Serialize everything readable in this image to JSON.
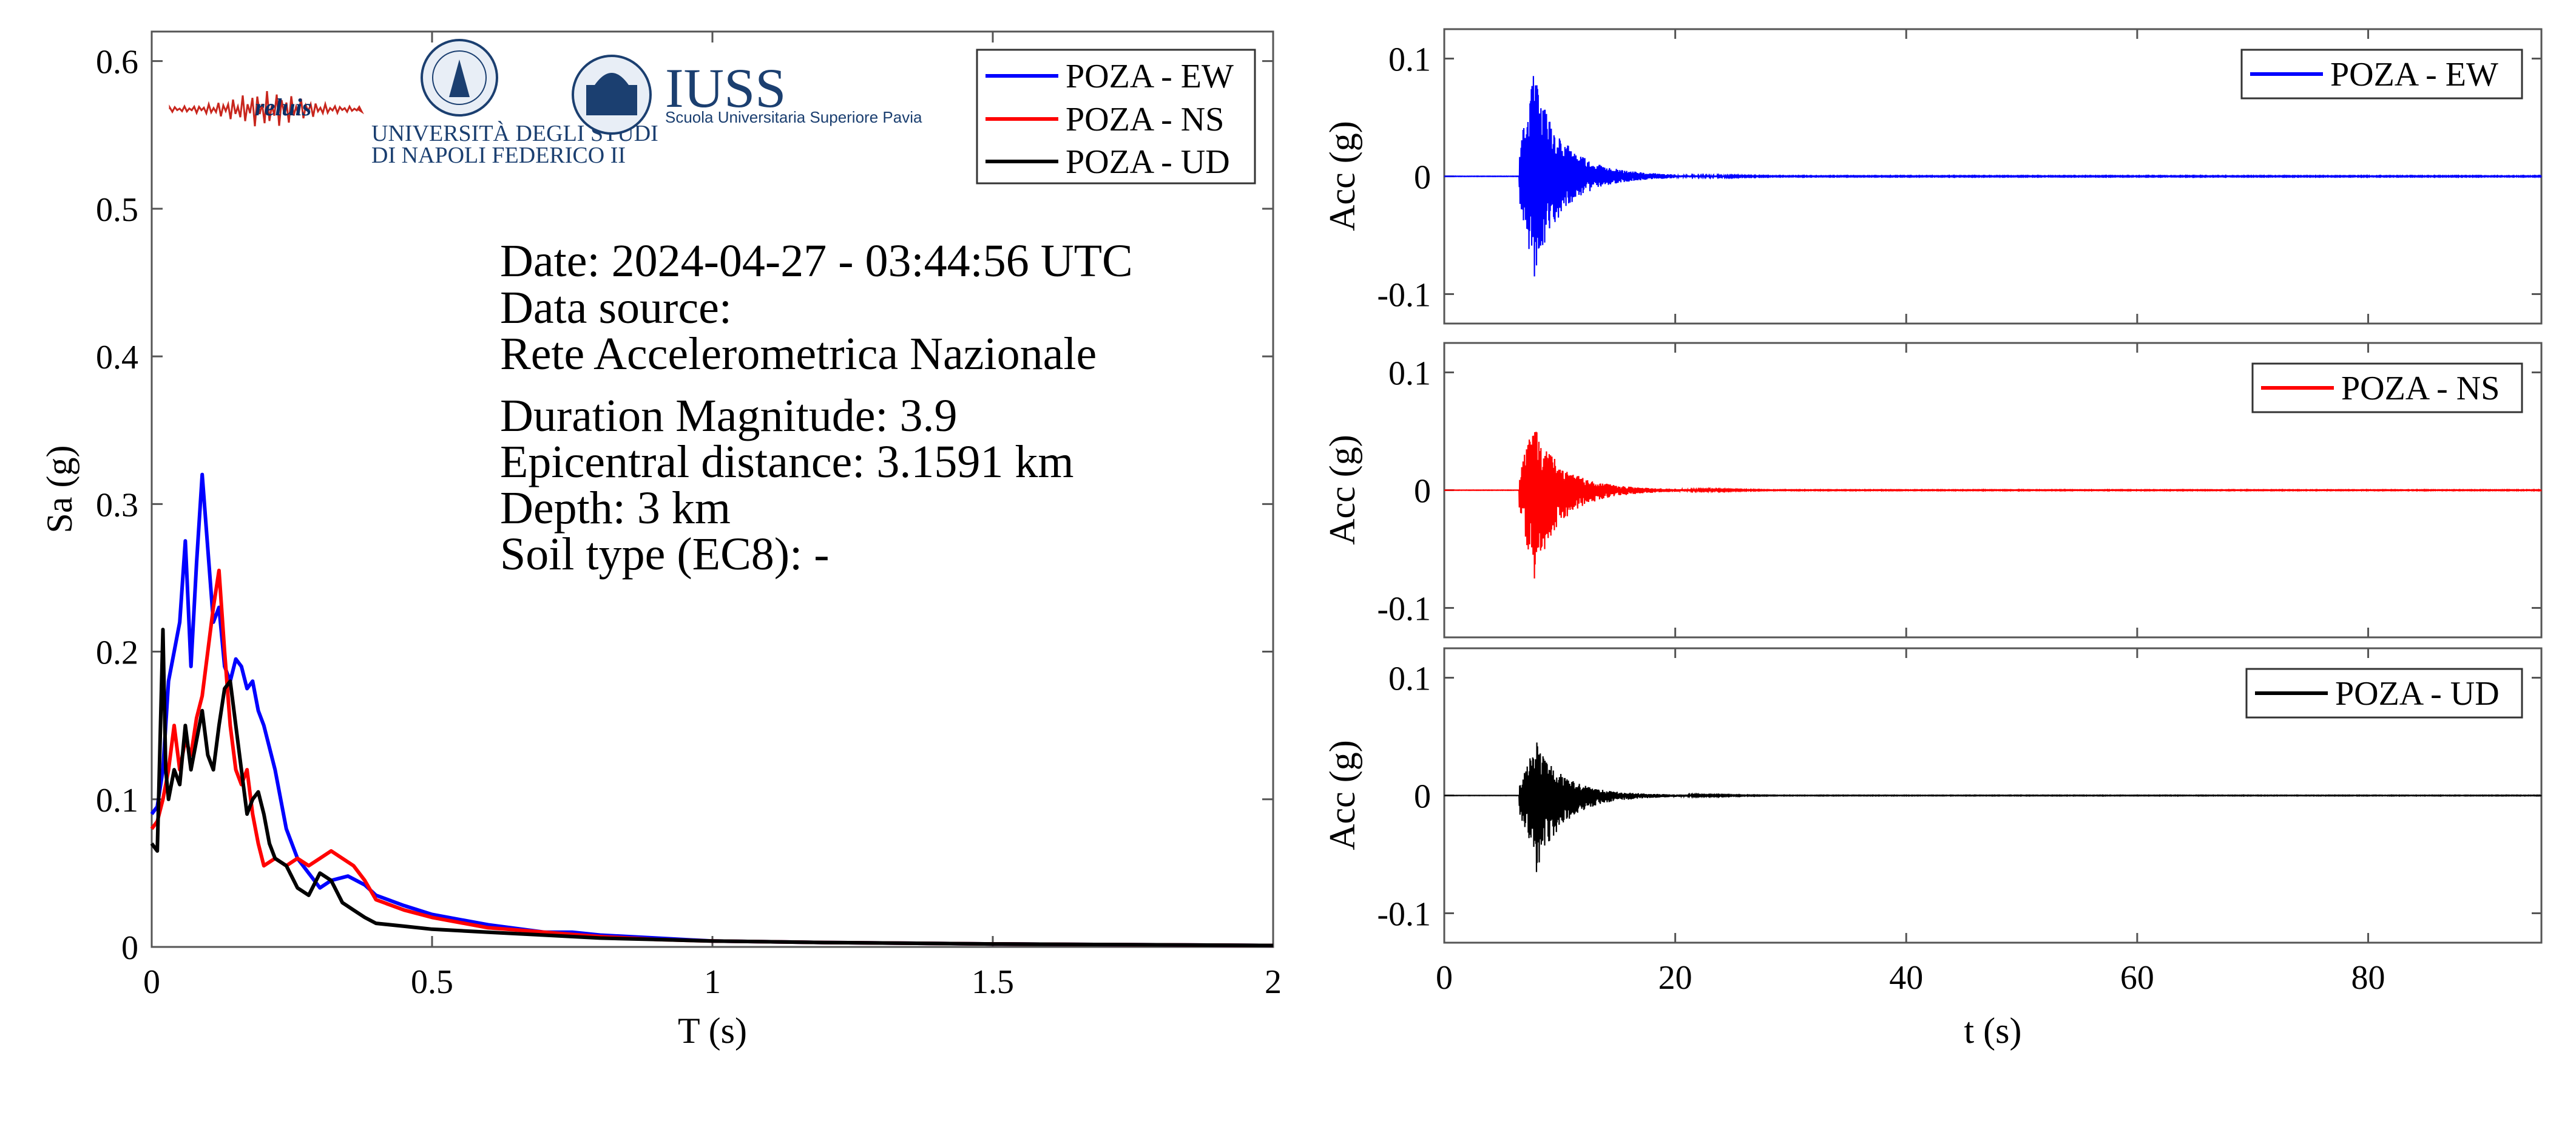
{
  "colors": {
    "ew": "#0000ff",
    "ns": "#ff0000",
    "ud": "#000000"
  },
  "logos": {
    "reluis": "reluis",
    "unina_line1": "UNIVERSITÀ DEGLI STUDI",
    "unina_line2": "DI NAPOLI FEDERICO II",
    "iuss": "IUSS",
    "iuss_sub": "Scuola Universitaria Superiore Pavia"
  },
  "info": {
    "date": "Date: 2024-04-27 - 03:44:56 UTC",
    "source_label": "Data source:",
    "source": "Rete Accelerometrica Nazionale",
    "magnitude": "Duration Magnitude: 3.9",
    "distance": "Epicentral distance: 3.1591 km",
    "depth": "Depth: 3 km",
    "soil": "Soil type (EC8): -"
  },
  "chart_data": [
    {
      "type": "line",
      "xlabel": "T (s)",
      "ylabel": "Sa (g)",
      "xlim": [
        0,
        2
      ],
      "ylim": [
        0,
        0.62
      ],
      "xticks": [
        0,
        0.5,
        1,
        1.5,
        2
      ],
      "xtick_labels": [
        "0",
        "0.5",
        "1",
        "1.5",
        "2"
      ],
      "yticks": [
        0,
        0.1,
        0.2,
        0.3,
        0.4,
        0.5,
        0.6
      ],
      "ytick_labels": [
        "0",
        "0.1",
        "0.2",
        "0.3",
        "0.4",
        "0.5",
        "0.6"
      ],
      "legend": "top-right",
      "series": [
        {
          "name": "POZA - EW",
          "color": "#0000ff",
          "x": [
            0,
            0.01,
            0.02,
            0.03,
            0.04,
            0.05,
            0.06,
            0.07,
            0.08,
            0.09,
            0.1,
            0.11,
            0.12,
            0.13,
            0.14,
            0.15,
            0.16,
            0.17,
            0.18,
            0.19,
            0.2,
            0.22,
            0.24,
            0.26,
            0.28,
            0.3,
            0.32,
            0.35,
            0.38,
            0.4,
            0.45,
            0.5,
            0.6,
            0.7,
            0.75,
            0.8,
            0.9,
            1.0,
            1.2,
            1.5,
            2.0
          ],
          "y": [
            0.09,
            0.095,
            0.12,
            0.18,
            0.2,
            0.22,
            0.275,
            0.19,
            0.26,
            0.32,
            0.27,
            0.22,
            0.23,
            0.19,
            0.18,
            0.195,
            0.19,
            0.175,
            0.18,
            0.16,
            0.15,
            0.12,
            0.08,
            0.06,
            0.05,
            0.04,
            0.045,
            0.048,
            0.042,
            0.035,
            0.028,
            0.022,
            0.015,
            0.01,
            0.01,
            0.008,
            0.006,
            0.004,
            0.003,
            0.002,
            0.001
          ]
        },
        {
          "name": "POZA - NS",
          "color": "#ff0000",
          "x": [
            0,
            0.01,
            0.02,
            0.03,
            0.04,
            0.05,
            0.06,
            0.07,
            0.08,
            0.09,
            0.1,
            0.11,
            0.12,
            0.13,
            0.14,
            0.15,
            0.16,
            0.17,
            0.18,
            0.19,
            0.2,
            0.22,
            0.24,
            0.26,
            0.28,
            0.3,
            0.32,
            0.34,
            0.36,
            0.38,
            0.4,
            0.45,
            0.5,
            0.6,
            0.7,
            0.8,
            0.9,
            1.0,
            1.2,
            1.5,
            2.0
          ],
          "y": [
            0.08,
            0.085,
            0.1,
            0.12,
            0.15,
            0.12,
            0.14,
            0.13,
            0.155,
            0.17,
            0.2,
            0.23,
            0.255,
            0.2,
            0.15,
            0.12,
            0.11,
            0.12,
            0.09,
            0.07,
            0.055,
            0.06,
            0.055,
            0.06,
            0.055,
            0.06,
            0.065,
            0.06,
            0.055,
            0.045,
            0.032,
            0.025,
            0.02,
            0.013,
            0.01,
            0.007,
            0.005,
            0.004,
            0.003,
            0.002,
            0.001
          ]
        },
        {
          "name": "POZA - UD",
          "color": "#000000",
          "x": [
            0,
            0.01,
            0.02,
            0.025,
            0.03,
            0.04,
            0.05,
            0.06,
            0.07,
            0.08,
            0.09,
            0.1,
            0.11,
            0.12,
            0.13,
            0.14,
            0.15,
            0.16,
            0.17,
            0.18,
            0.19,
            0.2,
            0.21,
            0.22,
            0.24,
            0.26,
            0.28,
            0.3,
            0.32,
            0.34,
            0.36,
            0.38,
            0.4,
            0.45,
            0.5,
            0.6,
            0.7,
            0.8,
            0.9,
            1.0,
            1.2,
            1.5,
            2.0
          ],
          "y": [
            0.07,
            0.065,
            0.215,
            0.12,
            0.1,
            0.12,
            0.11,
            0.15,
            0.12,
            0.14,
            0.16,
            0.13,
            0.12,
            0.15,
            0.175,
            0.18,
            0.15,
            0.12,
            0.09,
            0.1,
            0.105,
            0.09,
            0.07,
            0.06,
            0.055,
            0.04,
            0.035,
            0.05,
            0.045,
            0.03,
            0.025,
            0.02,
            0.016,
            0.014,
            0.012,
            0.01,
            0.008,
            0.006,
            0.005,
            0.004,
            0.003,
            0.002,
            0.001
          ]
        }
      ]
    },
    {
      "type": "line",
      "xlabel": "",
      "ylabel": "Acc (g)",
      "xlim": [
        0,
        95
      ],
      "ylim": [
        -0.125,
        0.125
      ],
      "xticks": [
        0,
        20,
        40,
        60,
        80
      ],
      "yticks": [
        -0.1,
        0,
        0.1
      ],
      "ytick_labels": [
        "-0.1",
        "0",
        "0.1"
      ],
      "legend": "top-right",
      "series": [
        {
          "name": "POZA - EW",
          "color": "#0000ff",
          "peak_positive": 0.09,
          "peak_negative": -0.085,
          "peak_time": 7.8,
          "onset_time": 6.5,
          "decay_end_time": 20
        }
      ]
    },
    {
      "type": "line",
      "xlabel": "",
      "ylabel": "Acc (g)",
      "xlim": [
        0,
        95
      ],
      "ylim": [
        -0.125,
        0.125
      ],
      "xticks": [
        0,
        20,
        40,
        60,
        80
      ],
      "yticks": [
        -0.1,
        0,
        0.1
      ],
      "ytick_labels": [
        "-0.1",
        "0",
        "0.1"
      ],
      "legend": "top-right",
      "series": [
        {
          "name": "POZA - NS",
          "color": "#ff0000",
          "peak_positive": 0.06,
          "peak_negative": -0.075,
          "peak_time": 7.8,
          "onset_time": 6.5,
          "decay_end_time": 22
        }
      ]
    },
    {
      "type": "line",
      "xlabel": "t (s)",
      "ylabel": "Acc (g)",
      "xlim": [
        0,
        95
      ],
      "ylim": [
        -0.125,
        0.125
      ],
      "xticks": [
        0,
        20,
        40,
        60,
        80
      ],
      "xtick_labels": [
        "0",
        "20",
        "40",
        "60",
        "80"
      ],
      "yticks": [
        -0.1,
        0,
        0.1
      ],
      "ytick_labels": [
        "-0.1",
        "0",
        "0.1"
      ],
      "legend": "top-right",
      "series": [
        {
          "name": "POZA - UD",
          "color": "#000000",
          "peak_positive": 0.045,
          "peak_negative": -0.065,
          "peak_time": 8.0,
          "onset_time": 6.5,
          "decay_end_time": 22
        }
      ]
    }
  ]
}
